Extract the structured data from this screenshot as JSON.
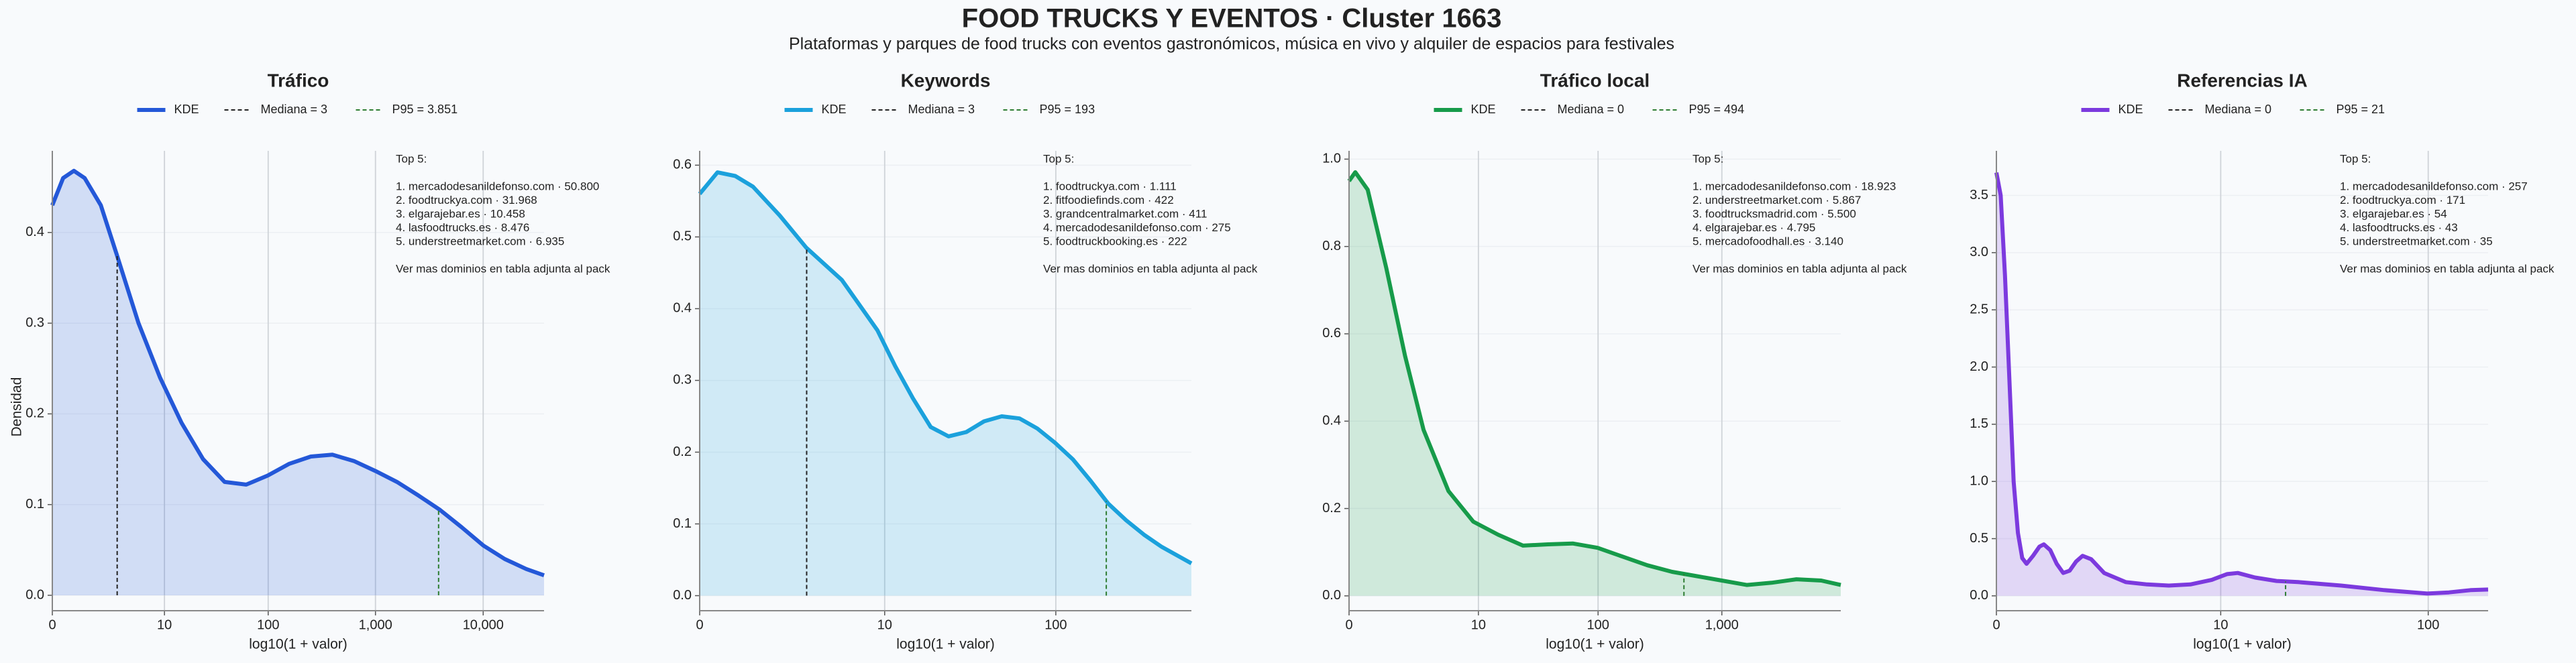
{
  "header": {
    "title": "FOOD TRUCKS Y EVENTOS · Cluster 1663",
    "subtitle": "Plataformas y parques de food trucks con eventos gastronómicos, música en vivo y alquiler de espacios para festivales"
  },
  "chart_data": [
    {
      "type": "area",
      "title": "Tráfico",
      "x_label": "log10(1 + valor)",
      "y_label": "Densidad",
      "x": [
        0,
        0.1,
        0.2,
        0.3,
        0.45,
        0.6,
        0.8,
        1.0,
        1.2,
        1.4,
        1.6,
        1.8,
        2.0,
        2.2,
        2.4,
        2.6,
        2.8,
        3.0,
        3.2,
        3.4,
        3.6,
        3.8,
        4.0,
        4.2,
        4.4,
        4.565
      ],
      "series": [
        {
          "name": "KDE",
          "color": "#2458d8",
          "values": [
            0.43,
            0.46,
            0.468,
            0.46,
            0.43,
            0.375,
            0.3,
            0.24,
            0.19,
            0.15,
            0.125,
            0.122,
            0.132,
            0.145,
            0.153,
            0.155,
            0.148,
            0.137,
            0.125,
            0.11,
            0.094,
            0.075,
            0.055,
            0.04,
            0.029,
            0.022
          ]
        }
      ],
      "vlines": [
        {
          "name": "Mediana = 3",
          "x": 0.602,
          "color": "#222222"
        },
        {
          "name": "P95 = 3.851",
          "x": 3.586,
          "color": "#2e7d32"
        }
      ],
      "xlim": [
        0,
        4.565
      ],
      "ylim": [
        -0.017,
        0.49
      ],
      "xticks": [
        0,
        {
          "value": 1.041,
          "label": "10"
        },
        {
          "value": 2.004,
          "label": "100"
        },
        {
          "value": 3.0,
          "label": "1,000"
        },
        {
          "value": 4.0,
          "label": "10,000"
        }
      ],
      "yticks": [
        {
          "value": 0,
          "label": "0.0"
        },
        0.1,
        0.2,
        0.3,
        0.4
      ],
      "grid": true,
      "annotation": [
        "Top 5:",
        "1. mercadodesanildefonso.com · 50.800",
        "2. foodtruckya.com · 31.968",
        "3. elgarajebar.es · 10.458",
        "4. lasfoodtrucks.es · 8.476",
        "5. understreetmarket.com · 6.935",
        "Ver mas dominios en tabla adjunta al pack"
      ]
    },
    {
      "type": "area",
      "title": "Keywords",
      "x_label": "log10(1 + valor)",
      "x": [
        0,
        0.1,
        0.2,
        0.3,
        0.45,
        0.6,
        0.8,
        1.0,
        1.1,
        1.2,
        1.3,
        1.4,
        1.5,
        1.6,
        1.7,
        1.8,
        1.9,
        2.0,
        2.1,
        2.2,
        2.3,
        2.4,
        2.5,
        2.6,
        2.767
      ],
      "series": [
        {
          "name": "KDE",
          "color": "#1ba1dc",
          "values": [
            0.56,
            0.59,
            0.585,
            0.57,
            0.53,
            0.485,
            0.44,
            0.37,
            0.32,
            0.275,
            0.235,
            0.222,
            0.228,
            0.243,
            0.25,
            0.247,
            0.233,
            0.213,
            0.19,
            0.16,
            0.128,
            0.105,
            0.085,
            0.068,
            0.045
          ]
        }
      ],
      "vlines": [
        {
          "name": "Mediana = 3",
          "x": 0.602,
          "color": "#222222"
        },
        {
          "name": "P95 = 193",
          "x": 2.288,
          "color": "#2e7d32"
        }
      ],
      "xlim": [
        0,
        2.767
      ],
      "ylim": [
        -0.021,
        0.62
      ],
      "xticks": [
        0,
        {
          "value": 1.041,
          "label": "10"
        },
        {
          "value": 2.004,
          "label": "100"
        }
      ],
      "yticks": [
        {
          "value": 0,
          "label": "0.0"
        },
        0.1,
        0.2,
        0.3,
        0.4,
        0.5,
        0.6
      ],
      "grid": true,
      "annotation": [
        "Top 5:",
        "1. foodtruckya.com · 1.111",
        "2. fitfoodiefinds.com · 422",
        "3. grandcentralmarket.com · 411",
        "4. mercadodesanildefonso.com · 275",
        "5. foodtruckbooking.es · 222",
        "Ver mas dominios en tabla adjunta al pack"
      ]
    },
    {
      "type": "area",
      "title": "Tráfico local",
      "x_label": "log10(1 + valor)",
      "x": [
        0,
        0.05,
        0.15,
        0.3,
        0.45,
        0.6,
        0.8,
        1.0,
        1.2,
        1.4,
        1.6,
        1.8,
        2.0,
        2.2,
        2.4,
        2.6,
        2.8,
        3.0,
        3.2,
        3.4,
        3.6,
        3.8,
        3.957
      ],
      "series": [
        {
          "name": "KDE",
          "color": "#179b4a",
          "values": [
            0.95,
            0.97,
            0.93,
            0.75,
            0.55,
            0.38,
            0.24,
            0.17,
            0.14,
            0.115,
            0.118,
            0.12,
            0.11,
            0.09,
            0.07,
            0.055,
            0.045,
            0.035,
            0.025,
            0.03,
            0.038,
            0.035,
            0.025
          ]
        }
      ],
      "vlines": [
        {
          "name": "Mediana = 0",
          "x": 0,
          "color": "#222222"
        },
        {
          "name": "P95 = 494",
          "x": 2.695,
          "color": "#2e7d32"
        }
      ],
      "xlim": [
        0,
        3.957
      ],
      "ylim": [
        -0.034,
        1.019
      ],
      "xticks": [
        0,
        {
          "value": 1.041,
          "label": "10"
        },
        {
          "value": 2.004,
          "label": "100"
        },
        {
          "value": 3.0,
          "label": "1,000"
        }
      ],
      "yticks": [
        {
          "value": 0,
          "label": "0.0"
        },
        0.2,
        0.4,
        0.6,
        0.8,
        {
          "value": 1,
          "label": "1.0"
        }
      ],
      "grid": true,
      "annotation": [
        "Top 5:",
        "1. mercadodesanildefonso.com · 18.923",
        "2. understreetmarket.com · 5.867",
        "3. foodtrucksmadrid.com · 5.500",
        "4. elgarajebar.es · 4.795",
        "5. mercadofoodhall.es · 3.140",
        "Ver mas dominios en tabla adjunta al pack"
      ]
    },
    {
      "type": "area",
      "title": "Referencias IA",
      "x_label": "log10(1 + valor)",
      "x": [
        0,
        0.02,
        0.04,
        0.06,
        0.08,
        0.1,
        0.12,
        0.14,
        0.17,
        0.2,
        0.22,
        0.25,
        0.28,
        0.31,
        0.34,
        0.37,
        0.4,
        0.44,
        0.5,
        0.6,
        0.7,
        0.8,
        0.9,
        1.0,
        1.07,
        1.12,
        1.2,
        1.3,
        1.4,
        1.6,
        1.8,
        2.0,
        2.1,
        2.2,
        2.282
      ],
      "series": [
        {
          "name": "KDE",
          "color": "#7c3ade",
          "values": [
            3.7,
            3.5,
            2.8,
            1.9,
            1.0,
            0.55,
            0.33,
            0.28,
            0.35,
            0.43,
            0.45,
            0.4,
            0.28,
            0.2,
            0.22,
            0.3,
            0.35,
            0.32,
            0.2,
            0.12,
            0.1,
            0.09,
            0.1,
            0.14,
            0.19,
            0.2,
            0.16,
            0.13,
            0.12,
            0.09,
            0.05,
            0.02,
            0.03,
            0.05,
            0.055
          ]
        }
      ],
      "vlines": [
        {
          "name": "Mediana = 0",
          "x": 0,
          "color": "#222222"
        },
        {
          "name": "P95 = 21",
          "x": 1.342,
          "color": "#2e7d32"
        }
      ],
      "xlim": [
        0,
        2.282
      ],
      "ylim": [
        -0.13,
        3.89
      ],
      "xticks": [
        0,
        {
          "value": 1.041,
          "label": "10"
        },
        {
          "value": 2.004,
          "label": "100"
        }
      ],
      "yticks": [
        {
          "value": 0,
          "label": "0.0"
        },
        0.5,
        {
          "value": 1,
          "label": "1.0"
        },
        1.5,
        {
          "value": 2,
          "label": "2.0"
        },
        2.5,
        {
          "value": 3,
          "label": "3.0"
        },
        3.5
      ],
      "grid": true,
      "annotation": [
        "Top 5:",
        "1. mercadodesanildefonso.com · 257",
        "2. foodtruckya.com · 171",
        "3. elgarajebar.es · 54",
        "4. lasfoodtrucks.es · 43",
        "5. understreetmarket.com · 35",
        "Ver mas dominios en tabla adjunta al pack"
      ]
    }
  ]
}
